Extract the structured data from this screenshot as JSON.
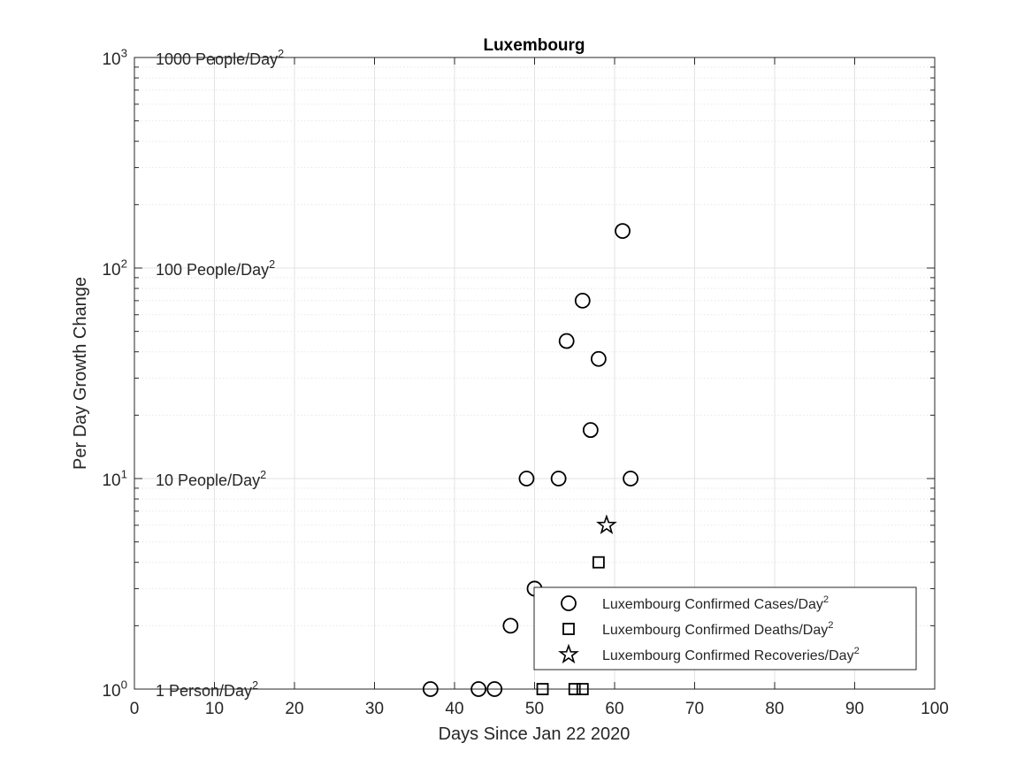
{
  "chart_data": {
    "type": "scatter",
    "title": "Luxembourg",
    "xlabel": "Days Since Jan 22 2020",
    "ylabel": "Per Day Growth Change",
    "xlim": [
      0,
      100
    ],
    "ylim": [
      1,
      1000
    ],
    "y_scale": "log",
    "grid": true,
    "legend_position": "bottom-right",
    "x_ticks": [
      "0",
      "10",
      "20",
      "30",
      "40",
      "50",
      "60",
      "70",
      "80",
      "90",
      "100"
    ],
    "y_ticks": [
      {
        "base": "10",
        "exp": "0",
        "value": 1
      },
      {
        "base": "10",
        "exp": "1",
        "value": 10
      },
      {
        "base": "10",
        "exp": "2",
        "value": 100
      },
      {
        "base": "10",
        "exp": "3",
        "value": 1000
      }
    ],
    "annotations": [
      {
        "text": "1 Person/Day",
        "sup": "2",
        "y": 1
      },
      {
        "text": "10 People/Day",
        "sup": "2",
        "y": 10
      },
      {
        "text": "100 People/Day",
        "sup": "2",
        "y": 100
      },
      {
        "text": "1000 People/Day",
        "sup": "2",
        "y": 1000
      }
    ],
    "series": [
      {
        "name": "Luxembourg Confirmed Cases/Day",
        "name_sup": "2",
        "marker": "circle",
        "points": [
          [
            37,
            1
          ],
          [
            43,
            1
          ],
          [
            45,
            1
          ],
          [
            47,
            2
          ],
          [
            49,
            10
          ],
          [
            50,
            3
          ],
          [
            53,
            10
          ],
          [
            54,
            45
          ],
          [
            56,
            70
          ],
          [
            57,
            17
          ],
          [
            58,
            37
          ],
          [
            61,
            150
          ],
          [
            62,
            10
          ]
        ]
      },
      {
        "name": "Luxembourg Confirmed Deaths/Day",
        "name_sup": "2",
        "marker": "square",
        "points": [
          [
            51,
            1
          ],
          [
            55,
            1
          ],
          [
            56,
            1
          ],
          [
            58,
            4
          ]
        ]
      },
      {
        "name": "Luxembourg Confirmed Recoveries/Day",
        "name_sup": "2",
        "marker": "star",
        "points": [
          [
            59,
            6
          ]
        ]
      }
    ]
  }
}
